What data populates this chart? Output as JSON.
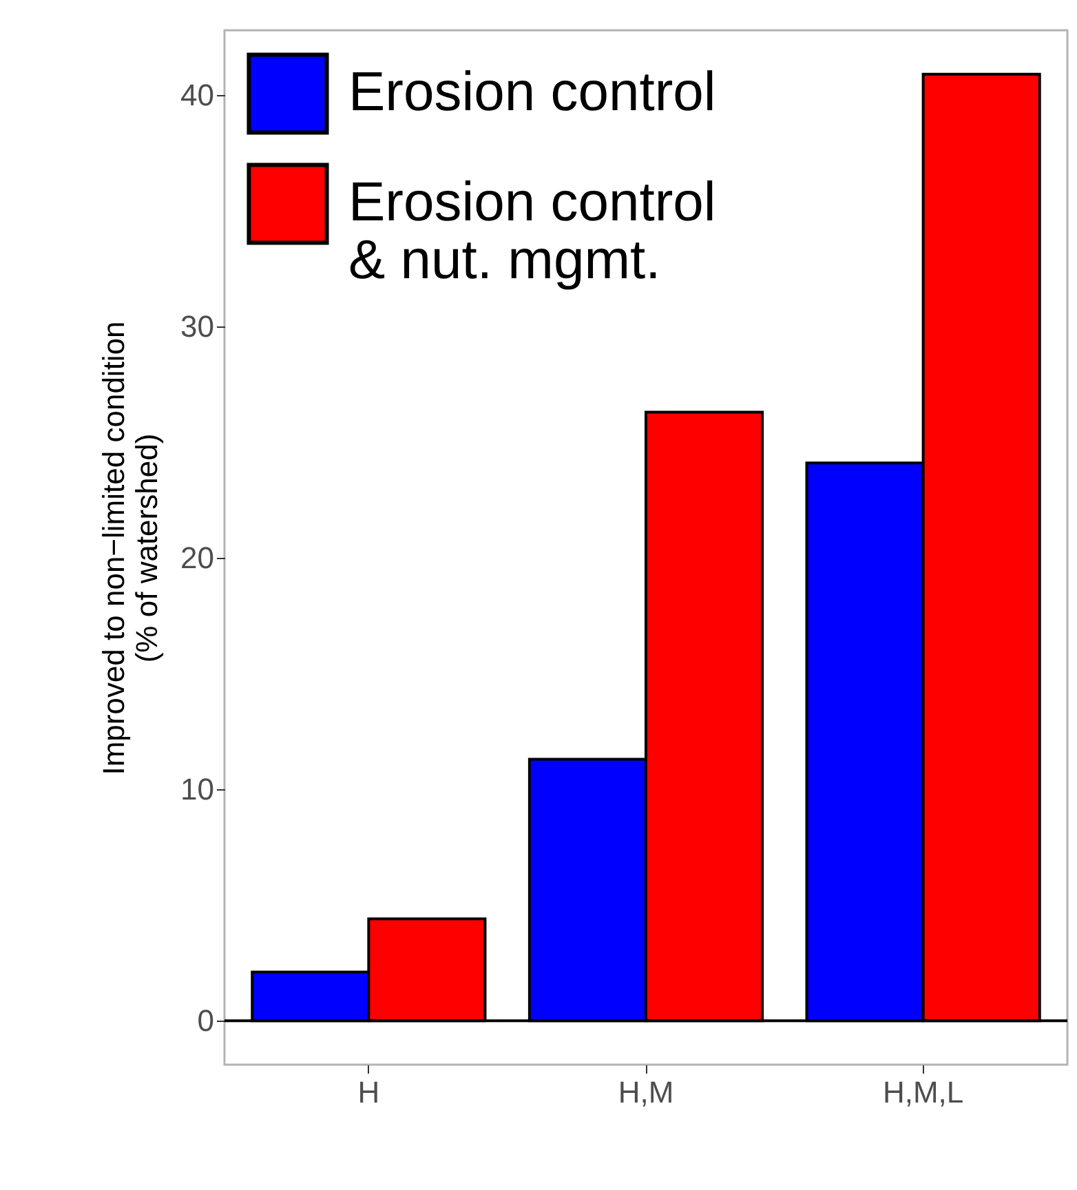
{
  "chart_data": {
    "type": "bar",
    "ylabel": "Improved to non−limited condition\n(% of watershed)",
    "categories": [
      "H",
      "H,M",
      "H,M,L"
    ],
    "series": [
      {
        "name": "Erosion control",
        "color": "#0000ff",
        "values": [
          2.1,
          11.3,
          24.1
        ]
      },
      {
        "name": "Erosion control & nut. mgmt.",
        "color": "#ff0000",
        "values": [
          4.4,
          26.3,
          40.9
        ]
      }
    ],
    "ylim": [
      -1.9,
      42.8
    ],
    "yticks": [
      0,
      10,
      20,
      30,
      40
    ],
    "ref_lines": [
      {
        "axis": "y",
        "value": 0,
        "color": "#000000"
      }
    ],
    "grid": false,
    "legend": "top left"
  }
}
